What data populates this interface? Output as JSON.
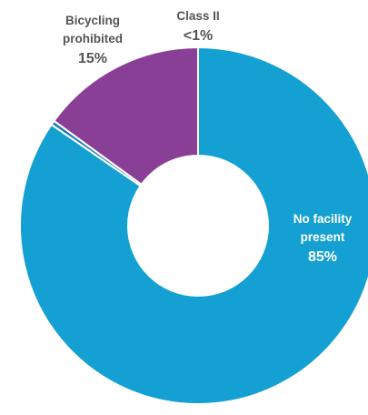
{
  "chart_data": {
    "type": "pie",
    "donut": true,
    "slices": [
      {
        "name": "No facility present",
        "name_lines": [
          "No facility",
          "present"
        ],
        "value_label": "85%",
        "value": 84.6,
        "color": "#14a0d2",
        "label_color_name": "#ffffff",
        "label_color_value": "#ffffff"
      },
      {
        "name": "Class II",
        "name_lines": [
          "Class II"
        ],
        "value_label": "<1%",
        "value": 0.4,
        "color": "#1e7fb3",
        "label_color_name": "#555555",
        "label_color_value": "#555555"
      },
      {
        "name": "Bicycling prohibited",
        "name_lines": [
          "Bicycling",
          "prohibited"
        ],
        "value_label": "15%",
        "value": 15.0,
        "color": "#8a3f96",
        "label_color_name": "#555555",
        "label_color_value": "#555555"
      }
    ]
  }
}
